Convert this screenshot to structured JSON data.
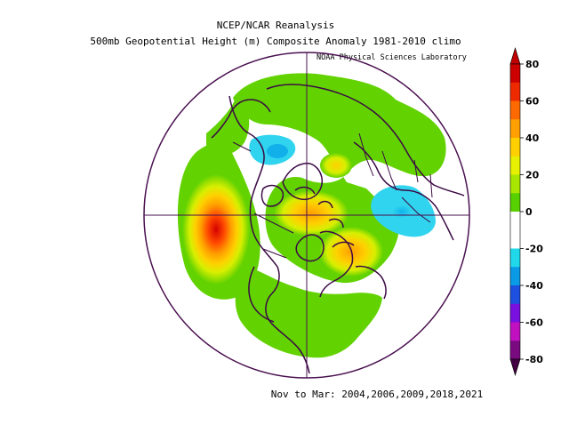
{
  "header": {
    "title": "NCEP/NCAR Reanalysis",
    "subtitle": "500mb Geopotential Height (m) Composite Anomaly 1981-2010 climo",
    "credit": "NOAA Physical Sciences Laboratory"
  },
  "footer": {
    "period": "Nov to Mar: 2004,2006,2009,2018,2021"
  },
  "map": {
    "projection": "north-polar-stereographic",
    "variable": "500mb geopotential height anomaly",
    "units": "m",
    "colors": {
      "boundary": "#4a1050",
      "coast": "#3b0a45"
    }
  },
  "colorbar": {
    "labels": [
      "80",
      "60",
      "40",
      "20",
      "0",
      "-20",
      "-40",
      "-60",
      "-80"
    ],
    "values": [
      80,
      60,
      40,
      20,
      0,
      -20,
      -40,
      -60,
      -80
    ],
    "min": -80,
    "max": 80,
    "colors_top_to_bottom": [
      "#cc0000",
      "#ee2a00",
      "#ff6a00",
      "#ff9f00",
      "#ffd000",
      "#e6f000",
      "#a8e600",
      "#58d000",
      "#ffffff",
      "#ffffff",
      "#20d8ea",
      "#0a9ae6",
      "#1e50e0",
      "#7a10e0",
      "#c010c0",
      "#7a0a80"
    ],
    "arrow_top_color": "#c00000",
    "arrow_bottom_color": "#40003f"
  }
}
